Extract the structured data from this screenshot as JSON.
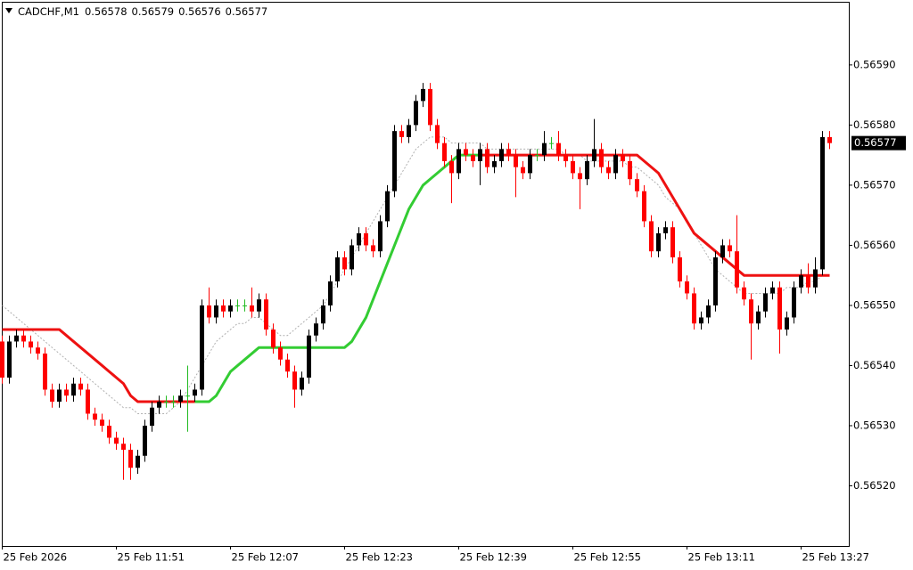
{
  "chart_data": {
    "type": "candlestick",
    "title": "CADCHF,M1",
    "header_ohlc": [
      0.56578,
      0.56579,
      0.56576,
      0.56577
    ],
    "last_price": 0.56577,
    "categories": [
      "25 Feb 2026",
      null,
      null,
      null,
      null,
      null,
      null,
      null,
      null,
      null,
      null,
      null,
      null,
      null,
      null,
      null,
      "25 Feb 11:51",
      null,
      null,
      null,
      null,
      null,
      null,
      null,
      null,
      null,
      null,
      null,
      null,
      null,
      null,
      null,
      "25 Feb 12:07",
      null,
      null,
      null,
      null,
      null,
      null,
      null,
      null,
      null,
      null,
      null,
      null,
      null,
      null,
      null,
      "25 Feb 12:23",
      null,
      null,
      null,
      null,
      null,
      null,
      null,
      null,
      null,
      null,
      null,
      null,
      null,
      null,
      null,
      "25 Feb 12:39",
      null,
      null,
      null,
      null,
      null,
      null,
      null,
      null,
      null,
      null,
      null,
      null,
      null,
      null,
      null,
      "25 Feb 12:55",
      null,
      null,
      null,
      null,
      null,
      null,
      null,
      null,
      null,
      null,
      null,
      null,
      null,
      null,
      null,
      "25 Feb 13:11",
      null,
      null,
      null,
      null,
      null,
      null,
      null,
      null,
      null,
      null,
      null,
      null,
      null,
      null,
      null,
      "25 Feb 13:27",
      null,
      null,
      null,
      null
    ],
    "open": [
      0.56544,
      0.56538,
      0.56544,
      0.56545,
      0.56544,
      0.56543,
      0.56542,
      0.56536,
      0.56534,
      0.56536,
      0.56535,
      0.56537,
      0.56536,
      0.56532,
      0.56531,
      0.5653,
      0.56528,
      0.56527,
      0.56526,
      0.56523,
      0.56525,
      0.5653,
      0.56533,
      0.56534,
      0.56534,
      0.56534,
      0.56535,
      0.56535,
      0.56536,
      0.5655,
      0.56548,
      0.5655,
      0.56549,
      0.5655,
      0.5655,
      0.5655,
      0.56549,
      0.56551,
      0.56546,
      0.56543,
      0.56541,
      0.56539,
      0.56536,
      0.56538,
      0.56545,
      0.56547,
      0.5655,
      0.56554,
      0.56558,
      0.56556,
      0.5656,
      0.56562,
      0.5656,
      0.56559,
      0.56564,
      0.56569,
      0.56579,
      0.56578,
      0.5658,
      0.56584,
      0.56586,
      0.5658,
      0.56577,
      0.56574,
      0.56572,
      0.56576,
      0.56575,
      0.56574,
      0.56576,
      0.56573,
      0.56574,
      0.56576,
      0.56575,
      0.56573,
      0.56572,
      0.56575,
      0.56575,
      0.56577,
      0.56577,
      0.56575,
      0.56574,
      0.56572,
      0.56571,
      0.56574,
      0.56576,
      0.56573,
      0.56572,
      0.56575,
      0.56574,
      0.56571,
      0.56569,
      0.56564,
      0.56559,
      0.56562,
      0.56563,
      0.56558,
      0.56554,
      0.56552,
      0.56547,
      0.56548,
      0.5655,
      0.56558,
      0.5656,
      0.56559,
      0.56553,
      0.56551,
      0.56547,
      0.56549,
      0.56552,
      0.56553,
      0.56546,
      0.56548,
      0.56553,
      0.56555,
      0.56553,
      0.56556,
      0.56578
    ],
    "high": [
      0.56545,
      0.56545,
      0.56546,
      0.56546,
      0.56545,
      0.56544,
      0.56543,
      0.56537,
      0.56537,
      0.56537,
      0.56538,
      0.56538,
      0.56537,
      0.56533,
      0.56532,
      0.56531,
      0.56529,
      0.56528,
      0.56527,
      0.56526,
      0.56531,
      0.56534,
      0.56535,
      0.56535,
      0.56535,
      0.56536,
      0.5654,
      0.56537,
      0.56551,
      0.56553,
      0.56551,
      0.56551,
      0.56551,
      0.56551,
      0.56551,
      0.56553,
      0.56552,
      0.56552,
      0.56547,
      0.56544,
      0.56542,
      0.5654,
      0.56539,
      0.56546,
      0.56548,
      0.56551,
      0.56555,
      0.56559,
      0.56559,
      0.56561,
      0.56563,
      0.56563,
      0.56561,
      0.56565,
      0.5657,
      0.5658,
      0.5658,
      0.56581,
      0.56585,
      0.56587,
      0.56587,
      0.56581,
      0.56578,
      0.56575,
      0.56577,
      0.56577,
      0.56576,
      0.56577,
      0.56577,
      0.56575,
      0.56577,
      0.56577,
      0.56576,
      0.56574,
      0.56576,
      0.56576,
      0.56579,
      0.56578,
      0.56579,
      0.56576,
      0.56575,
      0.56573,
      0.56575,
      0.56581,
      0.56577,
      0.56574,
      0.56576,
      0.56576,
      0.56575,
      0.56572,
      0.5657,
      0.56565,
      0.56563,
      0.56564,
      0.56564,
      0.56559,
      0.56555,
      0.56553,
      0.56549,
      0.56551,
      0.56559,
      0.56561,
      0.56561,
      0.56565,
      0.56554,
      0.56552,
      0.5655,
      0.56553,
      0.56554,
      0.56554,
      0.56549,
      0.56554,
      0.56556,
      0.56557,
      0.56558,
      0.56579,
      0.56579
    ],
    "low": [
      0.56537,
      0.56537,
      0.56543,
      0.56543,
      0.56542,
      0.56541,
      0.56535,
      0.56533,
      0.56533,
      0.56534,
      0.56534,
      0.56535,
      0.56531,
      0.5653,
      0.56529,
      0.56527,
      0.56526,
      0.56521,
      0.56521,
      0.56522,
      0.56524,
      0.56529,
      0.56532,
      0.56533,
      0.56533,
      0.56533,
      0.56529,
      0.56534,
      0.56535,
      0.56547,
      0.56547,
      0.56548,
      0.56548,
      0.56549,
      0.56549,
      0.56548,
      0.56548,
      0.56545,
      0.56542,
      0.5654,
      0.56538,
      0.56533,
      0.56535,
      0.56537,
      0.56544,
      0.56546,
      0.56549,
      0.56553,
      0.56555,
      0.56555,
      0.56559,
      0.56559,
      0.56558,
      0.56558,
      0.56563,
      0.56568,
      0.56577,
      0.56577,
      0.56579,
      0.56583,
      0.56579,
      0.56576,
      0.56573,
      0.56567,
      0.56571,
      0.56574,
      0.56573,
      0.5657,
      0.56572,
      0.56572,
      0.56573,
      0.56574,
      0.56568,
      0.56571,
      0.56571,
      0.56574,
      0.56574,
      0.56576,
      0.56574,
      0.56573,
      0.56571,
      0.56566,
      0.5657,
      0.56573,
      0.56572,
      0.56571,
      0.56571,
      0.56573,
      0.5657,
      0.56568,
      0.56563,
      0.56558,
      0.56558,
      0.56561,
      0.56557,
      0.56553,
      0.56551,
      0.56546,
      0.56546,
      0.56547,
      0.56549,
      0.56557,
      0.56558,
      0.56552,
      0.5655,
      0.56541,
      0.56546,
      0.56548,
      0.56551,
      0.56542,
      0.56545,
      0.56547,
      0.56552,
      0.56552,
      0.56552,
      0.56555,
      0.56576
    ],
    "close": [
      0.56538,
      0.56544,
      0.56545,
      0.56544,
      0.56543,
      0.56542,
      0.56536,
      0.56534,
      0.56536,
      0.56535,
      0.56537,
      0.56536,
      0.56532,
      0.56531,
      0.5653,
      0.56528,
      0.56527,
      0.56526,
      0.56523,
      0.56525,
      0.5653,
      0.56533,
      0.56534,
      0.56534,
      0.56534,
      0.56535,
      0.56535,
      0.56536,
      0.5655,
      0.56548,
      0.5655,
      0.56549,
      0.5655,
      0.5655,
      0.5655,
      0.56549,
      0.56551,
      0.56546,
      0.56543,
      0.56541,
      0.56539,
      0.56536,
      0.56538,
      0.56545,
      0.56547,
      0.5655,
      0.56554,
      0.56558,
      0.56556,
      0.5656,
      0.56562,
      0.5656,
      0.56559,
      0.56564,
      0.56569,
      0.56579,
      0.56578,
      0.5658,
      0.56584,
      0.56586,
      0.5658,
      0.56577,
      0.56574,
      0.56572,
      0.56576,
      0.56575,
      0.56574,
      0.56576,
      0.56573,
      0.56574,
      0.56576,
      0.56575,
      0.56573,
      0.56572,
      0.56575,
      0.56575,
      0.56577,
      0.56577,
      0.56575,
      0.56574,
      0.56572,
      0.56571,
      0.56574,
      0.56576,
      0.56573,
      0.56572,
      0.56575,
      0.56574,
      0.56571,
      0.56569,
      0.56564,
      0.56559,
      0.56562,
      0.56563,
      0.56558,
      0.56554,
      0.56552,
      0.56547,
      0.56548,
      0.5655,
      0.56558,
      0.5656,
      0.56559,
      0.56553,
      0.56551,
      0.56547,
      0.56549,
      0.56552,
      0.56553,
      0.56546,
      0.56548,
      0.56553,
      0.56555,
      0.56553,
      0.56556,
      0.56578,
      0.56577
    ],
    "up_color": "#000000",
    "down_color": "#ff0000",
    "doji_color": "#22bb22",
    "indicators": [
      {
        "color": "#b0b0b0",
        "width": 1,
        "dash": true,
        "values": [
          0.5655,
          0.56549,
          0.56548,
          0.56547,
          0.56546,
          0.56545,
          0.56544,
          0.56543,
          0.56542,
          0.56541,
          0.5654,
          0.56539,
          0.56538,
          0.56537,
          0.56536,
          0.56535,
          0.56534,
          0.56533,
          0.56533,
          0.56532,
          0.56532,
          0.56532,
          0.56532,
          0.56532,
          0.56533,
          0.56534,
          0.56536,
          0.56538,
          0.5654,
          0.56542,
          0.56544,
          0.56545,
          0.56546,
          0.56547,
          0.56547,
          0.56548,
          0.56548,
          0.56547,
          0.56546,
          0.56545,
          0.56545,
          0.56546,
          0.56547,
          0.56548,
          0.56549,
          0.5655,
          0.56552,
          0.56554,
          0.56556,
          0.56558,
          0.5656,
          0.56562,
          0.56564,
          0.56566,
          0.56568,
          0.5657,
          0.56572,
          0.56574,
          0.56576,
          0.56577,
          0.56578,
          0.56578,
          0.56578,
          0.56577,
          0.56577,
          0.56577,
          0.56577,
          0.56577,
          0.56576,
          0.56576,
          0.56576,
          0.56576,
          0.56576,
          0.56576,
          0.56576,
          0.56576,
          0.56576,
          0.56576,
          0.56576,
          0.56575,
          0.56575,
          0.56575,
          0.56574,
          0.56574,
          0.56574,
          0.56574,
          0.56574,
          0.56574,
          0.56573,
          0.56573,
          0.56572,
          0.56571,
          0.5657,
          0.56568,
          0.56567,
          0.56566,
          0.56564,
          0.56562,
          0.5656,
          0.56558,
          0.56556,
          0.56555,
          0.56554,
          0.56553,
          0.56552,
          0.56552,
          0.56552,
          0.56552,
          0.56552,
          0.56552,
          0.56553,
          0.56553,
          0.56553,
          0.56554,
          0.56554,
          0.56555,
          0.56555
        ]
      },
      {
        "color": "#ee1111",
        "width": 3,
        "dash": false,
        "values": [
          0.56546,
          0.56546,
          0.56546,
          0.56546,
          0.56546,
          0.56546,
          0.56546,
          0.56546,
          0.56546,
          0.56545,
          0.56544,
          0.56543,
          0.56542,
          0.56541,
          0.5654,
          0.56539,
          0.56538,
          0.56537,
          0.56535,
          0.56534,
          0.56534,
          0.56534,
          0.56534,
          0.56534,
          0.56534,
          0.56534,
          0.56534,
          0.56534,
          null,
          null,
          null,
          null,
          null,
          null,
          null,
          null,
          null,
          null,
          null,
          null,
          null,
          null,
          null,
          null,
          null,
          null,
          null,
          null,
          null,
          null,
          null,
          null,
          null,
          null,
          null,
          null,
          null,
          null,
          null,
          null,
          null,
          null,
          null,
          null,
          null,
          null,
          null,
          0.56575,
          0.56575,
          0.56575,
          0.56575,
          0.56575,
          0.56575,
          0.56575,
          0.56575,
          0.56575,
          0.56575,
          0.56575,
          0.56575,
          0.56575,
          0.56575,
          0.56575,
          0.56575,
          0.56575,
          0.56575,
          0.56575,
          0.56575,
          0.56575,
          0.56575,
          0.56575,
          0.56574,
          0.56573,
          0.56572,
          0.5657,
          0.56568,
          0.56566,
          0.56564,
          0.56562,
          0.56561,
          0.5656,
          0.56559,
          0.56558,
          0.56557,
          0.56556,
          0.56555,
          0.56555,
          0.56555,
          0.56555,
          0.56555,
          0.56555,
          0.56555,
          0.56555,
          0.56555,
          0.56555,
          0.56555,
          0.56555,
          0.56555
        ]
      },
      {
        "color": "#33cc33",
        "width": 3,
        "dash": false,
        "values": [
          null,
          null,
          null,
          null,
          null,
          null,
          null,
          null,
          null,
          null,
          null,
          null,
          null,
          null,
          null,
          null,
          null,
          null,
          null,
          null,
          null,
          null,
          null,
          null,
          null,
          null,
          null,
          0.56534,
          0.56534,
          0.56534,
          0.56535,
          0.56537,
          0.56539,
          0.5654,
          0.56541,
          0.56542,
          0.56543,
          0.56543,
          0.56543,
          0.56543,
          0.56543,
          0.56543,
          0.56543,
          0.56543,
          0.56543,
          0.56543,
          0.56543,
          0.56543,
          0.56543,
          0.56544,
          0.56546,
          0.56548,
          0.56551,
          0.56554,
          0.56557,
          0.5656,
          0.56563,
          0.56566,
          0.56568,
          0.5657,
          0.56571,
          0.56572,
          0.56573,
          0.56574,
          0.56575,
          0.56575,
          0.56575,
          0.56575,
          null,
          null,
          null,
          null,
          null,
          null,
          null,
          null,
          null,
          null,
          null,
          null,
          null,
          null,
          null,
          null,
          null,
          null,
          null,
          null,
          null,
          null,
          null,
          null,
          null,
          null,
          null,
          null,
          null,
          null,
          null,
          null,
          null,
          null,
          null,
          null,
          null,
          null,
          null,
          null,
          null,
          null,
          null,
          null,
          null,
          null,
          null,
          null,
          null
        ]
      }
    ],
    "ylim": [
      0.5651,
      0.566005
    ],
    "yticks": [
      {
        "value": 0.5652,
        "label": "0.56520"
      },
      {
        "value": 0.5653,
        "label": "0.56530"
      },
      {
        "value": 0.5654,
        "label": "0.56540"
      },
      {
        "value": 0.5655,
        "label": "0.56550"
      },
      {
        "value": 0.5656,
        "label": "0.56560"
      },
      {
        "value": 0.5657,
        "label": "0.56570"
      },
      {
        "value": 0.5658,
        "label": "0.56580"
      },
      {
        "value": 0.5659,
        "label": "0.56590"
      }
    ]
  }
}
